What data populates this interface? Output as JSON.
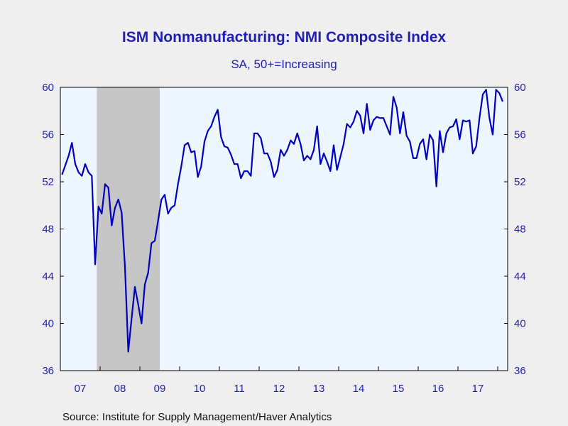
{
  "chart_data": {
    "type": "line",
    "title": "ISM Nonmanufacturing: NMI Composite Index",
    "subtitle": "SA, 50+=Increasing",
    "source": "Source:  Institute for Supply Management/Haver Analytics",
    "ylim": [
      36,
      60
    ],
    "y_ticks": [
      60,
      56,
      52,
      48,
      44,
      40,
      36
    ],
    "x_ticks": [
      "07",
      "08",
      "09",
      "10",
      "11",
      "12",
      "13",
      "14",
      "15",
      "16",
      "17"
    ],
    "x_start": "2007-01",
    "x_end": "2018-03",
    "recession": {
      "start": "2007-12",
      "end": "2009-06"
    },
    "line_color": "#0000c0",
    "plot_background": "#eef6ff",
    "recession_color": "#c6c6c6",
    "series": [
      {
        "values": [
          52.6,
          53.4,
          54.2,
          55.3,
          53.5,
          52.8,
          52.5,
          53.5,
          52.8,
          52.5,
          45.0,
          49.9,
          49.3,
          51.8,
          51.5,
          48.3,
          49.8,
          50.5,
          49.4,
          44.8,
          37.6,
          40.4,
          43.1,
          41.6,
          40.0,
          43.3,
          44.3,
          46.8,
          47.0,
          48.7,
          50.5,
          50.9,
          49.3,
          49.8,
          50.0,
          51.8,
          53.3,
          55.1,
          55.3,
          54.5,
          54.6,
          52.4,
          53.3,
          55.4,
          56.3,
          56.7,
          57.5,
          58.1,
          55.8,
          55.0,
          54.9,
          54.3,
          53.5,
          53.5,
          52.3,
          52.9,
          52.9,
          52.5,
          56.1,
          56.1,
          55.7,
          54.4,
          54.4,
          53.7,
          52.4,
          53.0,
          54.7,
          54.2,
          54.7,
          55.5,
          55.2,
          56.1,
          55.2,
          53.8,
          54.2,
          53.9,
          54.7,
          56.7,
          53.5,
          54.4,
          53.7,
          52.9,
          55.1,
          53.0,
          54.1,
          55.2,
          56.9,
          56.6,
          57.1,
          58.0,
          57.6,
          56.1,
          58.6,
          56.4,
          57.2,
          57.5,
          57.4,
          57.4,
          56.7,
          56.0,
          59.2,
          58.3,
          56.1,
          57.9,
          55.9,
          55.4,
          54.0,
          54.0,
          55.2,
          55.6,
          53.9,
          56.0,
          55.5,
          51.6,
          56.3,
          54.5,
          56.1,
          56.6,
          56.7,
          57.3,
          55.6,
          57.2,
          57.1,
          57.2,
          54.4,
          55.0,
          57.4,
          59.4,
          59.8,
          57.4,
          56.0,
          59.8,
          59.5,
          58.8
        ]
      }
    ]
  }
}
